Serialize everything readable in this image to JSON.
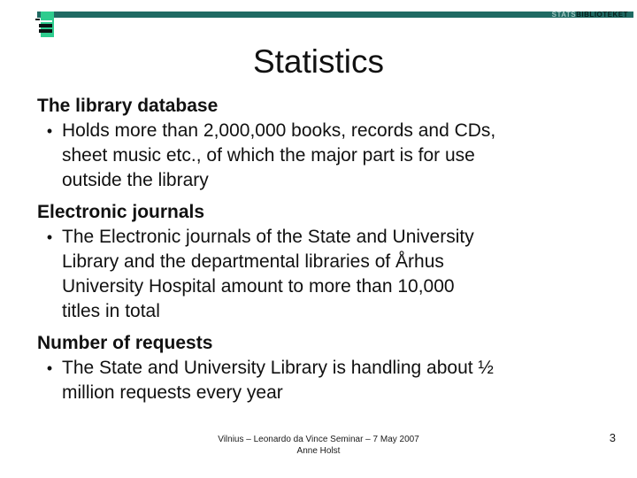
{
  "header": {
    "brand": {
      "light": "STATS",
      "dark": "BIBLIOTEKET"
    },
    "colors": {
      "bar_teal": "#206a63",
      "logo_green": "#2ecc8e",
      "brand_light": "#9fc3bf",
      "brand_dark": "#06201d"
    }
  },
  "title": "Statistics",
  "bullet_char": "•",
  "sections": [
    {
      "heading": "The library database",
      "bullet": "Holds more than 2,000,000 books, records and CDs,\nsheet music etc., of which the major part is for use\noutside the library"
    },
    {
      "heading": "Electronic journals",
      "bullet": "The Electronic journals of the State and University\nLibrary and the departmental libraries of Århus\nUniversity Hospital amount to more than 10,000\ntitles in total"
    },
    {
      "heading": "Number of requests",
      "bullet": "The State and University Library is handling about ½\nmillion requests every year"
    }
  ],
  "footer": {
    "line1": "Vilnius – Leonardo da Vince Seminar – 7 May 2007",
    "line2": "Anne Holst",
    "page_number": "3"
  }
}
